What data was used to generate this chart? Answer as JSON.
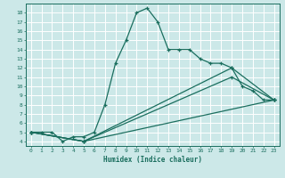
{
  "xlabel": "Humidex (Indice chaleur)",
  "bg_color": "#cce8e8",
  "grid_color": "#ffffff",
  "line_color": "#1a6e5e",
  "xlim": [
    -0.5,
    23.5
  ],
  "ylim": [
    3.5,
    19.0
  ],
  "xticks": [
    0,
    1,
    2,
    3,
    4,
    5,
    6,
    7,
    8,
    9,
    10,
    11,
    12,
    13,
    14,
    15,
    16,
    17,
    18,
    19,
    20,
    21,
    22,
    23
  ],
  "yticks": [
    4,
    5,
    6,
    7,
    8,
    9,
    10,
    11,
    12,
    13,
    14,
    15,
    16,
    17,
    18
  ],
  "line1_x": [
    0,
    1,
    2,
    3,
    4,
    5,
    6,
    7,
    8,
    9,
    10,
    11,
    12,
    13,
    14,
    15,
    16,
    17,
    18,
    19,
    20,
    21,
    22,
    23
  ],
  "line1_y": [
    5,
    5,
    5,
    4,
    4.5,
    4.5,
    5,
    8,
    12.5,
    15,
    18,
    18.5,
    17,
    14,
    14,
    14,
    13,
    12.5,
    12.5,
    12,
    10,
    9.5,
    8.5,
    8.5
  ],
  "line2_x": [
    0,
    5,
    19,
    23
  ],
  "line2_y": [
    5,
    4,
    12,
    8.5
  ],
  "line3_x": [
    0,
    5,
    19,
    23
  ],
  "line3_y": [
    5,
    4,
    11,
    8.5
  ],
  "line4_x": [
    0,
    5,
    23
  ],
  "line4_y": [
    5,
    4,
    8.5
  ]
}
